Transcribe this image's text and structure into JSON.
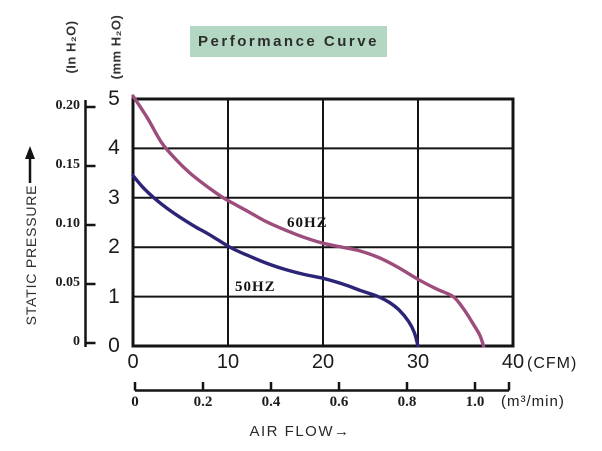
{
  "title": {
    "label": "Performance Curve"
  },
  "y_axis_labels": {
    "unit_primary": "(In H₂O)",
    "unit_secondary": "(mm H₂O)",
    "axis_label": "STATIC PRESSURE"
  },
  "x_axis_labels": {
    "unit_cfm": "(CFM)",
    "unit_m3min": "(m³/min)",
    "axis_label": "AIR FLOW→"
  },
  "chart_data": {
    "type": "line",
    "title": "Performance Curve",
    "grid": true,
    "x_axis": {
      "label": "AIR FLOW",
      "primary_unit": "CFM",
      "ticks_cfm": [
        0,
        10,
        20,
        30,
        40
      ],
      "xlim_cfm": [
        0,
        40
      ],
      "secondary_unit": "m³/min",
      "ticks_m3min": [
        "0",
        "0.2",
        "0.4",
        "0.6",
        "0.8",
        "1.0"
      ]
    },
    "y_axis": {
      "label": "STATIC PRESSURE",
      "left_unit": "In H₂O",
      "ticks_in_h2o": [
        "0.20",
        "0.15",
        "0.10",
        "0.05",
        "0"
      ],
      "right_unit": "mm H₂O",
      "ticks_mm_h2o": [
        5,
        4,
        3,
        2,
        1,
        0
      ],
      "ylim_mm": [
        0,
        5
      ]
    },
    "series": [
      {
        "name": "60HZ",
        "color": "#9d4d7c",
        "points_cfm_mm": [
          [
            0,
            5.06
          ],
          [
            1.5,
            4.62
          ],
          [
            3,
            4.12
          ],
          [
            4.5,
            3.78
          ],
          [
            6,
            3.5
          ],
          [
            8,
            3.2
          ],
          [
            9.5,
            3.0
          ],
          [
            11,
            2.84
          ],
          [
            12.5,
            2.68
          ],
          [
            14,
            2.52
          ],
          [
            16,
            2.35
          ],
          [
            18,
            2.2
          ],
          [
            20,
            2.08
          ],
          [
            22,
            2.0
          ],
          [
            24,
            1.92
          ],
          [
            26,
            1.78
          ],
          [
            28,
            1.58
          ],
          [
            30,
            1.35
          ],
          [
            32,
            1.15
          ],
          [
            33.7,
            1.0
          ],
          [
            34.8,
            0.75
          ],
          [
            35.8,
            0.45
          ],
          [
            36.5,
            0.22
          ],
          [
            36.9,
            0
          ]
        ]
      },
      {
        "name": "50HZ",
        "color": "#2b2477",
        "points_cfm_mm": [
          [
            0,
            3.45
          ],
          [
            1,
            3.22
          ],
          [
            2.2,
            3.0
          ],
          [
            3.5,
            2.8
          ],
          [
            5,
            2.6
          ],
          [
            6.5,
            2.42
          ],
          [
            8,
            2.26
          ],
          [
            10.2,
            2.0
          ],
          [
            12,
            1.84
          ],
          [
            14,
            1.68
          ],
          [
            16,
            1.55
          ],
          [
            18,
            1.45
          ],
          [
            20,
            1.37
          ],
          [
            22,
            1.26
          ],
          [
            24,
            1.12
          ],
          [
            25.8,
            1.0
          ],
          [
            27,
            0.88
          ],
          [
            28,
            0.73
          ],
          [
            29,
            0.5
          ],
          [
            29.6,
            0.28
          ],
          [
            30,
            0
          ]
        ]
      }
    ]
  }
}
